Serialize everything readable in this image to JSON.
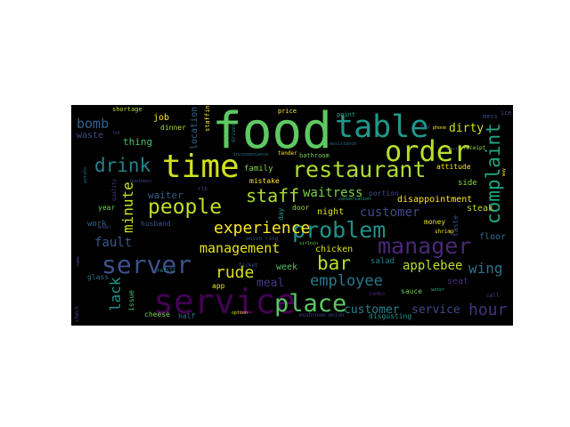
{
  "wordcloud": {
    "background": "#000000",
    "words": [
      {
        "text": "food",
        "color": "#5ec962"
      },
      {
        "text": "service",
        "color": "#440154"
      },
      {
        "text": "time",
        "color": "#d2e21b"
      },
      {
        "text": "table",
        "color": "#1f988b"
      },
      {
        "text": "order",
        "color": "#b5de2b"
      },
      {
        "text": "restaurant",
        "color": "#addc30"
      },
      {
        "text": "server",
        "color": "#3b528b"
      },
      {
        "text": "place",
        "color": "#5dc863"
      },
      {
        "text": "problem",
        "color": "#21918c"
      },
      {
        "text": "manager",
        "color": "#482878"
      },
      {
        "text": "people",
        "color": "#c2df23"
      },
      {
        "text": "drink",
        "color": "#26828e"
      },
      {
        "text": "complaint",
        "color": "#21a685"
      },
      {
        "text": "staff",
        "color": "#a8db34"
      },
      {
        "text": "experience",
        "color": "#fde725"
      },
      {
        "text": "bar",
        "color": "#b8de29"
      },
      {
        "text": "employee",
        "color": "#2a788e"
      },
      {
        "text": "hour",
        "color": "#46327e"
      },
      {
        "text": "customer",
        "color": "#3e4a89"
      },
      {
        "text": "customer",
        "color": "#25848e"
      },
      {
        "text": "service",
        "color": "#3e4989"
      },
      {
        "text": "management",
        "color": "#e5e419"
      },
      {
        "text": "rude",
        "color": "#d8e219"
      },
      {
        "text": "applebee",
        "color": "#bddf26"
      },
      {
        "text": "wing",
        "color": "#2c728e"
      },
      {
        "text": "minute",
        "color": "#c8e020"
      },
      {
        "text": "lack",
        "color": "#1f958b"
      },
      {
        "text": "waitress",
        "color": "#7ad151"
      },
      {
        "text": "bomb",
        "color": "#33638d"
      },
      {
        "text": "fault",
        "color": "#365c8d"
      },
      {
        "text": "meal",
        "color": "#443983"
      },
      {
        "text": "dirty",
        "color": "#d0e11c"
      },
      {
        "text": "thing",
        "color": "#4ac16d"
      },
      {
        "text": "waiter",
        "color": "#375b8d"
      },
      {
        "text": "job",
        "color": "#fde725"
      },
      {
        "text": "waste",
        "color": "#3e4a89"
      },
      {
        "text": "seat",
        "color": "#472d7b"
      },
      {
        "text": "week",
        "color": "#4ec36b"
      },
      {
        "text": "chicken",
        "color": "#dae319"
      },
      {
        "text": "night",
        "color": "#e2e418"
      },
      {
        "text": "family",
        "color": "#7fd34e"
      },
      {
        "text": "location",
        "color": "#31688e"
      },
      {
        "text": "disappointment",
        "color": "#fde725"
      },
      {
        "text": "steak",
        "color": "#bddf26"
      },
      {
        "text": "side",
        "color": "#8fd744"
      },
      {
        "text": "floor",
        "color": "#2e6e8e"
      },
      {
        "text": "salad",
        "color": "#25838e"
      },
      {
        "text": "work",
        "color": "#31688e"
      },
      {
        "text": "year",
        "color": "#6ccd5a"
      },
      {
        "text": "dinner",
        "color": "#b2dd2d"
      },
      {
        "text": "cheese",
        "color": "#7ad151"
      },
      {
        "text": "half",
        "color": "#2a788e"
      },
      {
        "text": "issue",
        "color": "#4ac16d"
      },
      {
        "text": "sauce",
        "color": "#6ece58"
      },
      {
        "text": "disgusting",
        "color": "#1f988b"
      },
      {
        "text": "portion",
        "color": "#3e4a89"
      },
      {
        "text": "mistake",
        "color": "#fde725"
      },
      {
        "text": "attitude",
        "color": "#fde725"
      },
      {
        "text": "money",
        "color": "#dde318"
      },
      {
        "text": "taste",
        "color": "#3b528b"
      },
      {
        "text": "app",
        "color": "#e5e419"
      },
      {
        "text": "glass",
        "color": "#2e6e8e"
      },
      {
        "text": "day",
        "color": "#1f968b"
      },
      {
        "text": "door",
        "color": "#9bd93c"
      },
      {
        "text": "husband",
        "color": "#3b528b"
      },
      {
        "text": "shortage",
        "color": "#b8de29"
      },
      {
        "text": "staffing",
        "color": "#fde725"
      },
      {
        "text": "price",
        "color": "#fde725"
      },
      {
        "text": "point",
        "color": "#22a785"
      },
      {
        "text": "mess",
        "color": "#414487"
      },
      {
        "text": "ice",
        "color": "#3e4a89"
      },
      {
        "text": "fry",
        "color": "#3e4a89"
      },
      {
        "text": "phone",
        "color": "#fde725"
      },
      {
        "text": "bathroom",
        "color": "#75d054"
      },
      {
        "text": "tender",
        "color": "#fde725"
      },
      {
        "text": "receipt",
        "color": "#9bd93c"
      },
      {
        "text": "combo",
        "color": "#482475"
      },
      {
        "text": "shrimp",
        "color": "#fde725"
      },
      {
        "text": "refill",
        "color": "#20928c"
      },
      {
        "text": "ticket",
        "color": "#3b528b"
      },
      {
        "text": "option",
        "color": "#dde318"
      },
      {
        "text": "mushroom onion",
        "color": "#414487"
      },
      {
        "text": "water",
        "color": "#29af7f"
      },
      {
        "text": "call",
        "color": "#3e4989"
      },
      {
        "text": "check",
        "color": "#433e85"
      },
      {
        "text": "driver",
        "color": "#2d708e"
      },
      {
        "text": "onion ring",
        "color": "#3b528b"
      },
      {
        "text": "sirloin",
        "color": "#6ece58"
      },
      {
        "text": "conversation",
        "color": "#22a884"
      },
      {
        "text": "business",
        "color": "#3b528b"
      },
      {
        "text": "quality",
        "color": "#433e85"
      },
      {
        "text": "rib",
        "color": "#3e4a89"
      },
      {
        "text": "inconvenience",
        "color": "#2e6e8e"
      },
      {
        "text": "assistance",
        "color": "#2e6e8e"
      },
      {
        "text": "potato",
        "color": "#2e6e8e"
      },
      {
        "text": "name",
        "color": "#3e4a89"
      },
      {
        "text": "cost",
        "color": "#3e4a89"
      },
      {
        "text": "model",
        "color": "#414487"
      },
      {
        "text": "way",
        "color": "#fde725"
      },
      {
        "text": "lot",
        "color": "#3e4a89"
      }
    ]
  }
}
